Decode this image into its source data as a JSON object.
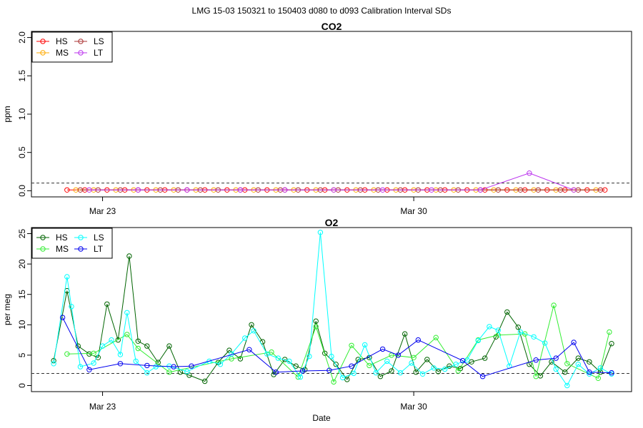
{
  "figure_title": "LMG   15-03    150321 to 150403    d080 to d093   Calibration Interval SDs",
  "xlabel": "Date",
  "x_ticks": [
    "Mar 23",
    "Mar 30"
  ],
  "chart_data": [
    {
      "type": "line",
      "title": "CO2",
      "ylabel": "ppm",
      "xlim": [
        80.5,
        94.0
      ],
      "ylim": [
        0,
        2.0
      ],
      "yticks": [
        0.0,
        0.5,
        1.0,
        1.5,
        2.0
      ],
      "ytick_labels": [
        "0.0",
        "0.5",
        "1.0",
        "1.5",
        "2.0"
      ],
      "reference_line": 0.1,
      "legend": "top-left",
      "series": [
        {
          "name": "HS",
          "color": "#ff0000",
          "x": [
            81.3,
            81.7,
            82.2,
            82.6,
            83.1,
            83.5,
            84.0,
            84.4,
            84.9,
            85.3,
            85.8,
            86.2,
            86.7,
            87.1,
            87.6,
            88.0,
            88.5,
            88.9,
            89.4,
            89.8,
            90.3,
            90.7,
            91.2,
            91.6,
            92.1,
            92.5,
            93.0,
            93.4
          ],
          "values": [
            0.01,
            0.01,
            0.01,
            0.01,
            0.01,
            0.01,
            0.01,
            0.01,
            0.01,
            0.01,
            0.01,
            0.01,
            0.01,
            0.01,
            0.01,
            0.01,
            0.01,
            0.01,
            0.01,
            0.01,
            0.01,
            0.01,
            0.01,
            0.01,
            0.01,
            0.01,
            0.01,
            0.01
          ]
        },
        {
          "name": "MS",
          "color": "#ffaa00",
          "x": [
            81.5,
            81.9,
            82.4,
            82.8,
            83.3,
            83.7,
            84.2,
            84.6,
            85.1,
            85.5,
            86.0,
            86.4,
            86.9,
            87.3,
            87.8,
            88.2,
            88.7,
            89.1,
            89.6,
            90.0,
            90.5,
            90.9,
            91.4,
            91.8,
            92.3,
            92.7,
            93.2
          ],
          "values": [
            0.01,
            0.01,
            0.01,
            0.01,
            0.01,
            0.01,
            0.01,
            0.01,
            0.01,
            0.01,
            0.01,
            0.01,
            0.01,
            0.01,
            0.01,
            0.01,
            0.01,
            0.01,
            0.01,
            0.01,
            0.01,
            0.01,
            0.01,
            0.01,
            0.01,
            0.01,
            0.01
          ]
        },
        {
          "name": "LS",
          "color": "#aa3333",
          "x": [
            81.6,
            82.0,
            82.5,
            82.9,
            83.4,
            83.8,
            84.3,
            84.7,
            85.2,
            85.6,
            86.1,
            86.5,
            87.0,
            87.4,
            87.9,
            88.3,
            88.8,
            89.2,
            89.7,
            90.1,
            90.6,
            91.0,
            91.5,
            91.9,
            92.4,
            92.8,
            93.3
          ],
          "values": [
            0.01,
            0.01,
            0.01,
            0.01,
            0.01,
            0.01,
            0.01,
            0.01,
            0.01,
            0.01,
            0.01,
            0.01,
            0.01,
            0.01,
            0.01,
            0.01,
            0.01,
            0.01,
            0.01,
            0.01,
            0.01,
            0.01,
            0.01,
            0.01,
            0.01,
            0.01,
            0.01
          ]
        },
        {
          "name": "LT",
          "color": "#bb33ee",
          "x": [
            81.8,
            82.9,
            84.0,
            85.2,
            86.2,
            87.3,
            88.4,
            89.5,
            90.6,
            91.7,
            92.7
          ],
          "values": [
            0.01,
            0.01,
            0.01,
            0.01,
            0.01,
            0.01,
            0.01,
            0.01,
            0.01,
            0.23,
            0.01
          ]
        }
      ]
    },
    {
      "type": "line",
      "title": "O2",
      "ylabel": "per meg",
      "xlim": [
        80.5,
        94.0
      ],
      "ylim": [
        0,
        25
      ],
      "yticks": [
        0,
        5,
        10,
        15,
        20,
        25
      ],
      "ytick_labels": [
        "0",
        "5",
        "10",
        "15",
        "20",
        "25"
      ],
      "reference_line": 2,
      "legend": "top-left",
      "series": [
        {
          "name": "HS",
          "color": "#006400",
          "x": [
            81.0,
            81.3,
            81.55,
            81.8,
            82.0,
            82.2,
            82.45,
            82.7,
            82.9,
            83.1,
            83.35,
            83.6,
            83.85,
            84.05,
            84.4,
            84.7,
            84.95,
            85.2,
            85.45,
            85.7,
            85.95,
            86.2,
            86.45,
            86.65,
            86.9,
            87.1,
            87.35,
            87.6,
            87.85,
            88.1,
            88.35,
            88.6,
            88.9,
            89.15,
            89.4,
            89.65,
            89.9,
            90.15,
            90.4,
            90.7,
            90.95,
            91.2,
            91.45,
            91.7,
            91.95,
            92.2,
            92.5,
            92.8,
            93.05,
            93.3,
            93.55
          ],
          "values": [
            4.1,
            15.6,
            6.5,
            5.2,
            4.6,
            13.4,
            7.5,
            21.3,
            7.3,
            6.5,
            3.8,
            6.5,
            2.2,
            1.7,
            0.7,
            3.8,
            5.8,
            4.4,
            10,
            7.2,
            1.8,
            4.3,
            3.2,
            2.6,
            10.6,
            5.3,
            3.5,
            1,
            4.3,
            4.6,
            1.5,
            2.4,
            8.5,
            2.2,
            4.3,
            2.3,
            3.2,
            2.8,
            3.9,
            4.5,
            8,
            12.1,
            9.6,
            3.5,
            1.6,
            3.9,
            2.2,
            4.5,
            3.9,
            2.2,
            6.9
          ]
        },
        {
          "name": "MS",
          "color": "#33ee33",
          "x": [
            81.3,
            81.9,
            82.65,
            82.9,
            83.6,
            85.0,
            85.9,
            86.5,
            86.9,
            87.3,
            87.7,
            88.1,
            88.6,
            89.1,
            89.6,
            90.1,
            90.55,
            91.0,
            91.6,
            91.85,
            92.25,
            92.55,
            93.25,
            93.5
          ],
          "values": [
            5.2,
            5.3,
            8.4,
            6.1,
            2.2,
            4.4,
            5.5,
            1.4,
            9.7,
            0.6,
            6.6,
            3.3,
            5.0,
            4.6,
            7.9,
            2.4,
            7.5,
            8.3,
            8.5,
            1.5,
            13.2,
            3.6,
            1.2,
            8.8
          ]
        },
        {
          "name": "LS",
          "color": "#00ffff",
          "x": [
            81.0,
            81.3,
            81.4,
            81.6,
            81.9,
            82.1,
            82.3,
            82.5,
            82.65,
            82.85,
            83.1,
            83.3,
            83.6,
            84.0,
            84.5,
            84.75,
            85.0,
            85.3,
            85.5,
            85.8,
            86.05,
            86.3,
            86.55,
            86.75,
            87.0,
            87.25,
            87.5,
            87.75,
            88.0,
            88.25,
            88.5,
            88.8,
            89.05,
            89.3,
            89.55,
            89.8,
            90.05,
            90.3,
            90.55,
            90.8,
            91.0,
            91.25,
            91.5,
            91.8,
            92.05,
            92.3,
            92.55,
            92.8,
            93.05,
            93.3,
            93.55
          ],
          "values": [
            3.6,
            17.9,
            13.0,
            3.1,
            3.7,
            6.5,
            7.5,
            5.1,
            12.0,
            4.0,
            2.1,
            3.1,
            3.2,
            2.3,
            4.0,
            3.5,
            5.2,
            7.8,
            9.0,
            5.2,
            4.5,
            4.0,
            1.4,
            4.8,
            25.2,
            4.8,
            1.3,
            2.0,
            6.7,
            2.1,
            4.0,
            2.1,
            3.7,
            1.9,
            2.9,
            2.7,
            3.5,
            4.2,
            7.4,
            9.7,
            9.1,
            3.2,
            8.8,
            8.0,
            7.0,
            2.7,
            0.0,
            3.5,
            1.9,
            2.9,
            1.9
          ]
        },
        {
          "name": "LT",
          "color": "#0000ee",
          "x": [
            81.2,
            81.8,
            82.5,
            83.1,
            83.7,
            84.1,
            85.4,
            86.0,
            86.6,
            87.2,
            87.7,
            88.4,
            88.75,
            89.2,
            90.2,
            90.65,
            91.85,
            92.3,
            92.7,
            93.05,
            93.55
          ],
          "values": [
            11.2,
            2.6,
            3.6,
            3.3,
            3.1,
            3.2,
            5.9,
            2.2,
            2.4,
            2.5,
            3.2,
            6.0,
            5.0,
            7.5,
            4.1,
            1.5,
            4.2,
            4.5,
            7.1,
            2.2,
            2.1
          ]
        }
      ]
    }
  ]
}
